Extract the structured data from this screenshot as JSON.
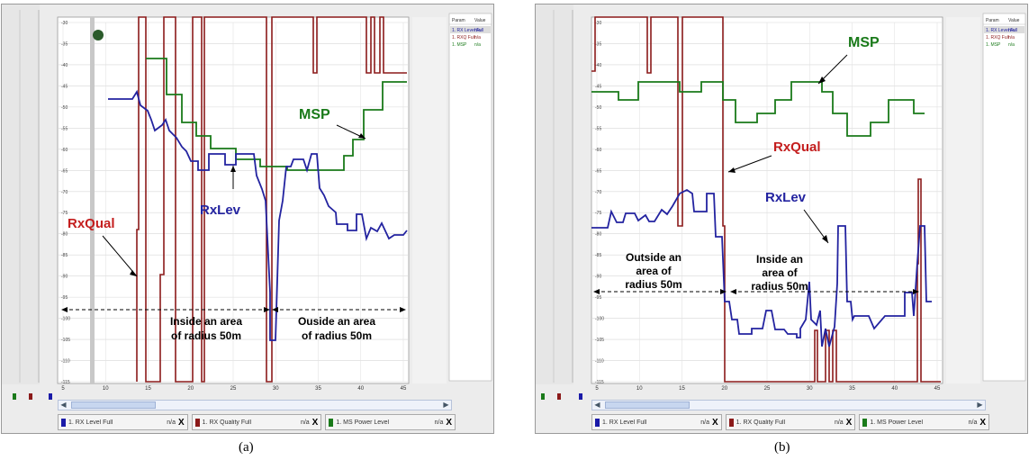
{
  "panels": [
    {
      "id": "a",
      "caption": "(a)",
      "grid_labels": [
        "-30",
        "-35",
        "-40",
        "-45",
        "-50",
        "-55",
        "-60",
        "-65",
        "-70",
        "-75",
        "-80",
        "-85",
        "-90",
        "-95",
        "-100",
        "-105",
        "-110",
        "-115"
      ],
      "x_ticks": [
        "5",
        "10",
        "15",
        "20",
        "25",
        "30",
        "35",
        "40",
        "45"
      ],
      "param_table": {
        "headers": [
          "Param",
          "Value"
        ],
        "rows": [
          [
            "1. RX Level Full",
            "n/a"
          ],
          [
            "1. RXQ Full",
            "n/a"
          ],
          [
            "1. MSP",
            "n/a"
          ]
        ]
      },
      "tabs": [
        {
          "label": "1. RX Level Full",
          "value": "n/a",
          "close": "X",
          "color": "#1a1aa8"
        },
        {
          "label": "1. RX Quality Full",
          "value": "n/a",
          "close": "X",
          "color": "#8b1a1a"
        },
        {
          "label": "1. MS Power Level",
          "value": "n/a",
          "close": "X",
          "color": "#1a7a1a"
        }
      ],
      "annotations": {
        "rxqual": "RxQual",
        "rxlev": "RxLev",
        "msp": "MSP",
        "region1": [
          "Inside an area",
          "of radius 50m"
        ],
        "region2": [
          "Ouside an area",
          "of radius 50m"
        ]
      },
      "colors": {
        "rxlev": "#2323a0",
        "rxqual": "#8b1a1a",
        "msp": "#1a7a1a"
      }
    },
    {
      "id": "b",
      "caption": "(b)",
      "grid_labels": [
        "-30",
        "-35",
        "-40",
        "-45",
        "-50",
        "-55",
        "-60",
        "-65",
        "-70",
        "-75",
        "-80",
        "-85",
        "-90",
        "-95",
        "-100",
        "-105",
        "-110",
        "-115"
      ],
      "x_ticks": [
        "5",
        "10",
        "15",
        "20",
        "25",
        "30",
        "35",
        "40",
        "45"
      ],
      "param_table": {
        "headers": [
          "Param",
          "Value"
        ],
        "rows": [
          [
            "1. RX Level Full",
            "n/a"
          ],
          [
            "1. RXQ Full",
            "n/a"
          ],
          [
            "1. MSP",
            "n/a"
          ]
        ]
      },
      "tabs": [
        {
          "label": "1. RX Level Full",
          "value": "n/a",
          "close": "X",
          "color": "#1a1aa8"
        },
        {
          "label": "1. RX Quality Full",
          "value": "n/a",
          "close": "X",
          "color": "#8b1a1a"
        },
        {
          "label": "1. MS Power Level",
          "value": "n/a",
          "close": "X",
          "color": "#1a7a1a"
        }
      ],
      "annotations": {
        "rxqual": "RxQual",
        "rxlev": "RxLev",
        "msp": "MSP",
        "region1": [
          "Outside an",
          "area of",
          "radius 50m"
        ],
        "region2": [
          "Inside an",
          "area of",
          "radius 50m"
        ]
      },
      "colors": {
        "rxlev": "#2323a0",
        "rxqual": "#8b1a1a",
        "msp": "#1a7a1a"
      }
    }
  ]
}
